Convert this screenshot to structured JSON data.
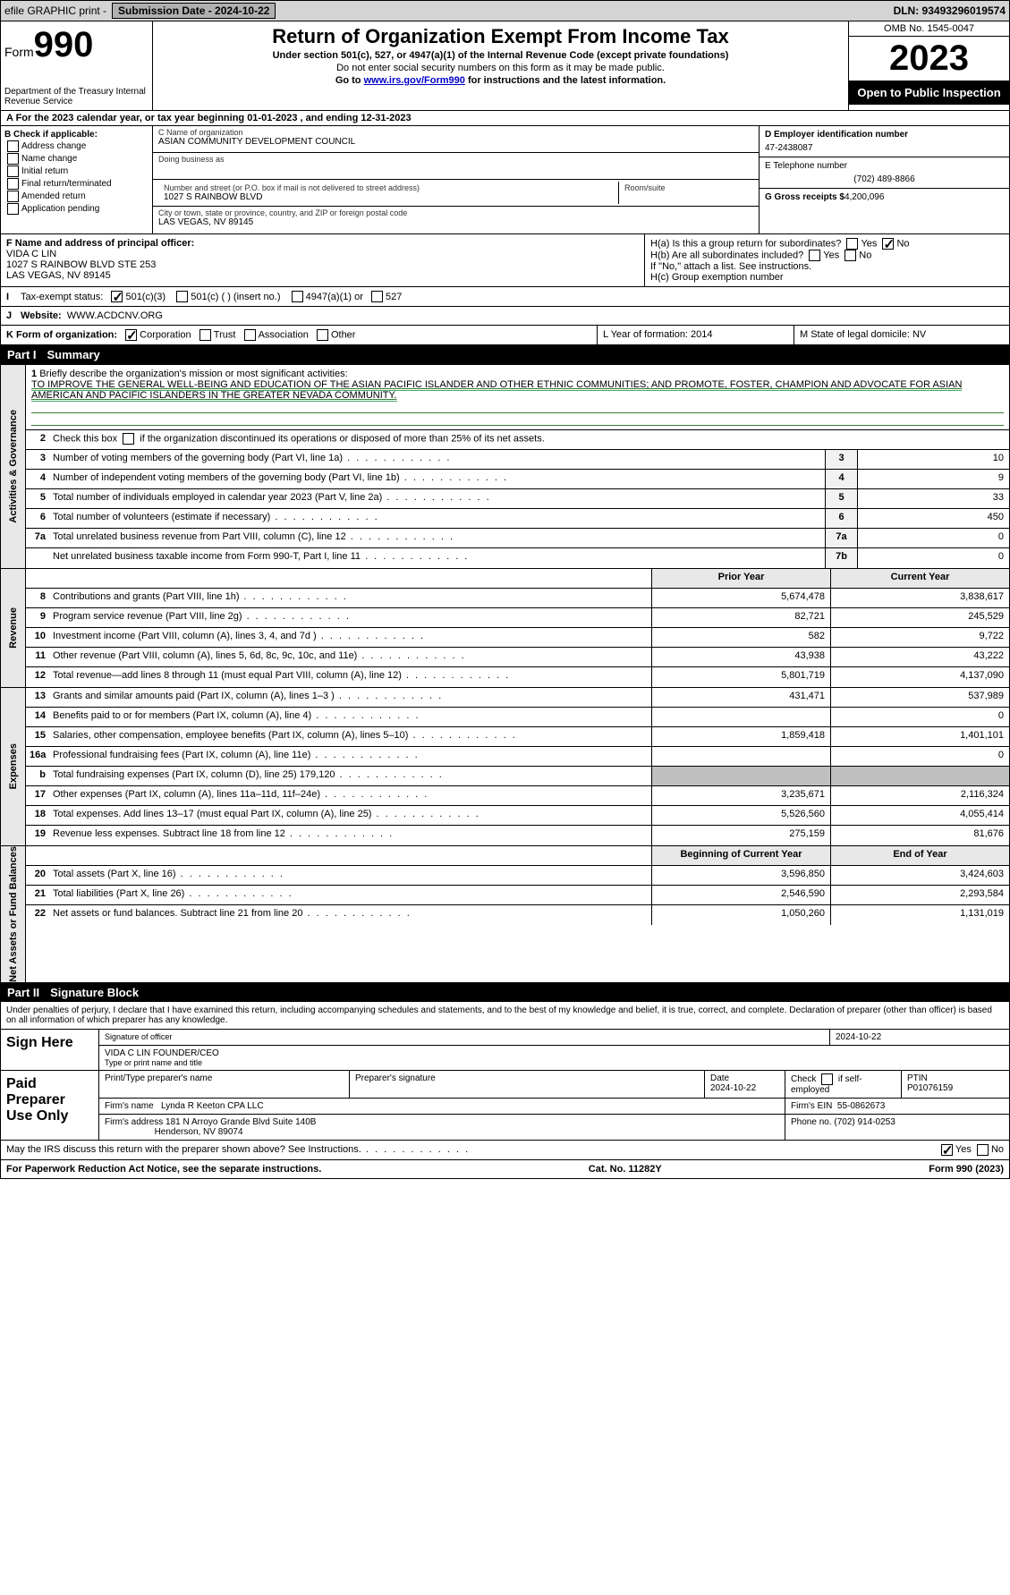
{
  "topbar": {
    "efile": "efile GRAPHIC print -",
    "submission_label": "Submission Date - 2024-10-22",
    "dln_label": "DLN: 93493296019574"
  },
  "header": {
    "form_word": "Form",
    "form_num": "990",
    "dept": "Department of the Treasury\nInternal Revenue Service",
    "title": "Return of Organization Exempt From Income Tax",
    "sub1": "Under section 501(c), 527, or 4947(a)(1) of the Internal Revenue Code (except private foundations)",
    "sub2": "Do not enter social security numbers on this form as it may be made public.",
    "sub3_pre": "Go to ",
    "sub3_link": "www.irs.gov/Form990",
    "sub3_post": " for instructions and the latest information.",
    "omb": "OMB No. 1545-0047",
    "year": "2023",
    "inspect": "Open to Public Inspection"
  },
  "row_a": "A  For the 2023 calendar year, or tax year beginning 01-01-2023     , and ending 12-31-2023",
  "col_b": {
    "hdr": "B Check if applicable:",
    "opts": [
      "Address change",
      "Name change",
      "Initial return",
      "Final return/terminated",
      "Amended return",
      "Application pending"
    ]
  },
  "col_c": {
    "name_lbl": "C Name of organization",
    "name": "ASIAN COMMUNITY DEVELOPMENT COUNCIL",
    "dba_lbl": "Doing business as",
    "addr_lbl": "Number and street (or P.O. box if mail is not delivered to street address)",
    "addr": "1027 S RAINBOW BLVD",
    "room_lbl": "Room/suite",
    "city_lbl": "City or town, state or province, country, and ZIP or foreign postal code",
    "city": "LAS VEGAS, NV  89145"
  },
  "col_d": {
    "ein_lbl": "D Employer identification number",
    "ein": "47-2438087",
    "tel_lbl": "E Telephone number",
    "tel": "(702) 489-8866",
    "gross_lbl": "G Gross receipts $",
    "gross": "4,200,096"
  },
  "row_f": {
    "lbl": "F  Name and address of principal officer:",
    "name": "VIDA C LIN",
    "addr1": "1027 S RAINBOW BLVD STE 253",
    "addr2": "LAS VEGAS, NV  89145"
  },
  "row_h": {
    "ha": "H(a)  Is this a group return for subordinates?",
    "hb": "H(b)  Are all subordinates included?",
    "hb2": "If \"No,\" attach a list. See instructions.",
    "hc": "H(c)  Group exemption number ",
    "yes": "Yes",
    "no": "No"
  },
  "tax_exempt": {
    "lbl": "Tax-exempt status:",
    "a": "501(c)(3)",
    "b": "501(c) (  ) (insert no.)",
    "c": "4947(a)(1) or",
    "d": "527"
  },
  "website": {
    "lbl": "Website:",
    "val": "WWW.ACDCNV.ORG"
  },
  "row_k": {
    "lbl": "K Form of organization:",
    "opts": [
      "Corporation",
      "Trust",
      "Association",
      "Other"
    ]
  },
  "row_lm": {
    "l": "L Year of formation: 2014",
    "m": "M State of legal domicile: NV"
  },
  "part1": {
    "num": "Part I",
    "title": "Summary"
  },
  "vtabs": {
    "a": "Activities & Governance",
    "r": "Revenue",
    "e": "Expenses",
    "n": "Net Assets or Fund Balances"
  },
  "mission_lbl": "Briefly describe the organization's mission or most significant activities:",
  "mission": "TO IMPROVE THE GENERAL WELL-BEING AND EDUCATION OF THE ASIAN PACIFIC ISLANDER AND OTHER ETHNIC COMMUNITIES; AND PROMOTE, FOSTER, CHAMPION AND ADVOCATE FOR ASIAN AMERICAN AND PACIFIC ISLANDERS IN THE GREATER NEVADA COMMUNITY.",
  "line2": "Check this box      if the organization discontinued its operations or disposed of more than 25% of its net assets.",
  "gov": [
    {
      "n": "3",
      "t": "Number of voting members of the governing body (Part VI, line 1a)",
      "b": "3",
      "v": "10"
    },
    {
      "n": "4",
      "t": "Number of independent voting members of the governing body (Part VI, line 1b)",
      "b": "4",
      "v": "9"
    },
    {
      "n": "5",
      "t": "Total number of individuals employed in calendar year 2023 (Part V, line 2a)",
      "b": "5",
      "v": "33"
    },
    {
      "n": "6",
      "t": "Total number of volunteers (estimate if necessary)",
      "b": "6",
      "v": "450"
    },
    {
      "n": "7a",
      "t": "Total unrelated business revenue from Part VIII, column (C), line 12",
      "b": "7a",
      "v": "0"
    },
    {
      "n": "",
      "t": "Net unrelated business taxable income from Form 990-T, Part I, line 11",
      "b": "7b",
      "v": "0"
    }
  ],
  "rev_hdr": {
    "py": "Prior Year",
    "cy": "Current Year"
  },
  "rev": [
    {
      "n": "8",
      "t": "Contributions and grants (Part VIII, line 1h)",
      "p": "5,674,478",
      "c": "3,838,617"
    },
    {
      "n": "9",
      "t": "Program service revenue (Part VIII, line 2g)",
      "p": "82,721",
      "c": "245,529"
    },
    {
      "n": "10",
      "t": "Investment income (Part VIII, column (A), lines 3, 4, and 7d )",
      "p": "582",
      "c": "9,722"
    },
    {
      "n": "11",
      "t": "Other revenue (Part VIII, column (A), lines 5, 6d, 8c, 9c, 10c, and 11e)",
      "p": "43,938",
      "c": "43,222"
    },
    {
      "n": "12",
      "t": "Total revenue—add lines 8 through 11 (must equal Part VIII, column (A), line 12)",
      "p": "5,801,719",
      "c": "4,137,090"
    }
  ],
  "exp": [
    {
      "n": "13",
      "t": "Grants and similar amounts paid (Part IX, column (A), lines 1–3 )",
      "p": "431,471",
      "c": "537,989"
    },
    {
      "n": "14",
      "t": "Benefits paid to or for members (Part IX, column (A), line 4)",
      "p": "",
      "c": "0"
    },
    {
      "n": "15",
      "t": "Salaries, other compensation, employee benefits (Part IX, column (A), lines 5–10)",
      "p": "1,859,418",
      "c": "1,401,101"
    },
    {
      "n": "16a",
      "t": "Professional fundraising fees (Part IX, column (A), line 11e)",
      "p": "",
      "c": "0"
    },
    {
      "n": "b",
      "t": "Total fundraising expenses (Part IX, column (D), line 25) 179,120",
      "p": "grey",
      "c": "grey"
    },
    {
      "n": "17",
      "t": "Other expenses (Part IX, column (A), lines 11a–11d, 11f–24e)",
      "p": "3,235,671",
      "c": "2,116,324"
    },
    {
      "n": "18",
      "t": "Total expenses. Add lines 13–17 (must equal Part IX, column (A), line 25)",
      "p": "5,526,560",
      "c": "4,055,414"
    },
    {
      "n": "19",
      "t": "Revenue less expenses. Subtract line 18 from line 12",
      "p": "275,159",
      "c": "81,676"
    }
  ],
  "net_hdr": {
    "b": "Beginning of Current Year",
    "e": "End of Year"
  },
  "net": [
    {
      "n": "20",
      "t": "Total assets (Part X, line 16)",
      "p": "3,596,850",
      "c": "3,424,603"
    },
    {
      "n": "21",
      "t": "Total liabilities (Part X, line 26)",
      "p": "2,546,590",
      "c": "2,293,584"
    },
    {
      "n": "22",
      "t": "Net assets or fund balances. Subtract line 21 from line 20",
      "p": "1,050,260",
      "c": "1,131,019"
    }
  ],
  "part2": {
    "num": "Part II",
    "title": "Signature Block"
  },
  "penalties": "Under penalties of perjury, I declare that I have examined this return, including accompanying schedules and statements, and to the best of my knowledge and belief, it is true, correct, and complete. Declaration of preparer (other than officer) is based on all information of which preparer has any knowledge.",
  "sign": {
    "here": "Sign Here",
    "sig_lbl": "Signature of officer",
    "date": "2024-10-22",
    "name_lbl": "Type or print name and title",
    "name": "VIDA C LIN  FOUNDER/CEO"
  },
  "paid": {
    "hdr": "Paid Preparer Use Only",
    "c1": "Print/Type preparer's name",
    "c2": "Preparer's signature",
    "c3": "Date",
    "c3v": "2024-10-22",
    "c4": "Check       if self-employed",
    "c5": "PTIN",
    "c5v": "P01076159",
    "firm_lbl": "Firm's name",
    "firm": "Lynda R Keeton CPA LLC",
    "ein_lbl": "Firm's EIN",
    "ein": "55-0862673",
    "addr_lbl": "Firm's address",
    "addr1": "181 N Arroyo Grande Blvd Suite 140B",
    "addr2": "Henderson, NV  89074",
    "phone_lbl": "Phone no.",
    "phone": "(702) 914-0253"
  },
  "discuss": "May the IRS discuss this return with the preparer shown above? See Instructions.",
  "footer": {
    "l": "For Paperwork Reduction Act Notice, see the separate instructions.",
    "m": "Cat. No. 11282Y",
    "r": "Form 990 (2023)"
  }
}
